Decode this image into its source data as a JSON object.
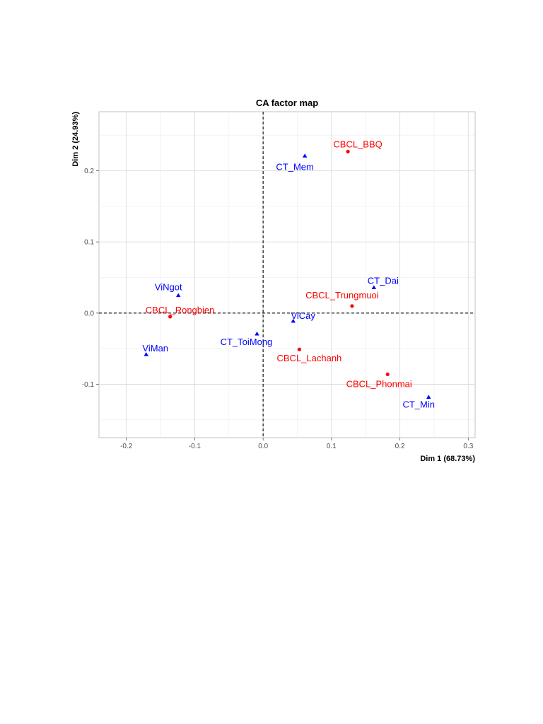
{
  "chart_data": {
    "type": "scatter",
    "title": "CA factor map",
    "xlabel": "Dim 1 (68.73%)",
    "ylabel": "Dim 2 (24.93%)",
    "xlim": [
      -0.24,
      0.31
    ],
    "ylim": [
      -0.175,
      0.283
    ],
    "xticks": [
      -0.2,
      -0.1,
      0.0,
      0.1,
      0.2,
      0.3
    ],
    "xtick_labels": [
      "-0.2",
      "-0.1",
      "0.0",
      "0.1",
      "0.2",
      "0.3"
    ],
    "yticks": [
      -0.1,
      0.0,
      0.1,
      0.2
    ],
    "ytick_labels": [
      "-0.1",
      "0.0",
      "0.1",
      "0.2"
    ],
    "grid": true,
    "reference_lines": {
      "x": 0,
      "y": 0,
      "style": "dashed"
    },
    "series": [
      {
        "color": "#ff0000",
        "marker": "circle",
        "points": [
          {
            "label": "CBCL_BBQ",
            "x": 0.124,
            "y": 0.227
          },
          {
            "label": "CBCL_Trungmuoi",
            "x": 0.13,
            "y": 0.01
          },
          {
            "label": "CBCL_Rongbien",
            "x": -0.136,
            "y": -0.005
          },
          {
            "label": "CBCL_Lachanh",
            "x": 0.053,
            "y": -0.051
          },
          {
            "label": "CBCL_Phonmai",
            "x": 0.182,
            "y": -0.086
          }
        ]
      },
      {
        "color": "#0000ff",
        "marker": "triangle",
        "points": [
          {
            "label": "CT_Mem",
            "x": 0.061,
            "y": 0.221
          },
          {
            "label": "CT_Dai",
            "x": 0.162,
            "y": 0.036
          },
          {
            "label": "ViNgot",
            "x": -0.124,
            "y": 0.025
          },
          {
            "label": "ViCay",
            "x": 0.044,
            "y": -0.011
          },
          {
            "label": "CT_ToiMong",
            "x": -0.009,
            "y": -0.029
          },
          {
            "label": "ViMan",
            "x": -0.171,
            "y": -0.058
          },
          {
            "label": "CT_Min",
            "x": 0.242,
            "y": -0.118
          }
        ]
      }
    ]
  }
}
